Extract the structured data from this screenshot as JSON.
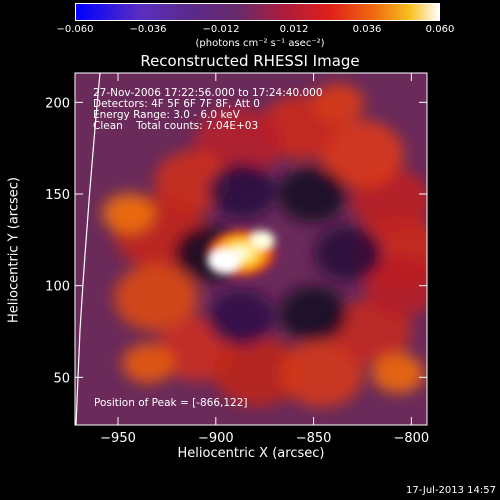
{
  "chart_data": {
    "type": "heatmap",
    "title": "Reconstructed RHESSI Image",
    "xlabel": "Heliocentric X (arcsec)",
    "ylabel": "Heliocentric Y (arcsec)",
    "xlim": [
      -972,
      -792
    ],
    "ylim": [
      24,
      216
    ],
    "xticks": [
      -950,
      -900,
      -850,
      -800
    ],
    "yticks": [
      50,
      100,
      150,
      200
    ],
    "colorbar": {
      "min": -0.06,
      "max": 0.06,
      "ticks": [
        "-0.060",
        "-0.036",
        "-0.012",
        "0.012",
        "0.036",
        "0.060"
      ],
      "units": "(photons cm⁻² s⁻¹ asec⁻²)"
    },
    "peak": {
      "x": -866,
      "y": 122
    },
    "colors": {
      "background": "#000000",
      "text": "#ffffff"
    }
  },
  "info": {
    "line1": "27-Nov-2006 17:22:56.000 to 17:24:40.000",
    "line2": "Detectors: 4F 5F 6F 7F 8F, Att 0",
    "line3": "Energy Range: 3.0 - 6.0 keV",
    "line4_a": "Clean",
    "line4_b": "Total counts: 7.04E+03",
    "peak_text": "Position of Peak = [-866,122]"
  },
  "footer": {
    "date": "17-Jul-2013 14:57"
  }
}
